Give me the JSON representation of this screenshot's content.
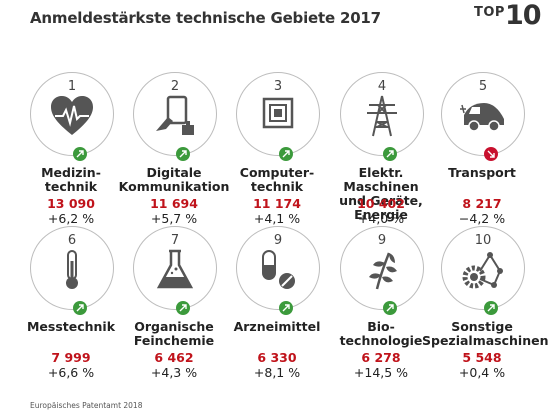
{
  "title": "Anmeldestärkste technische Gebiete 2017",
  "badge": {
    "top": "TOP",
    "num": "10"
  },
  "colors": {
    "up": "#3c9a3c",
    "down": "#c8102e",
    "value": "#c0131b"
  },
  "items": [
    {
      "rank": "1",
      "label_line1": "Medizin-",
      "label_line2": "technik",
      "value": "13 090",
      "change": "+6,2 %",
      "trend": "up",
      "icon": "heart-pulse-icon"
    },
    {
      "rank": "2",
      "label_line1": "Digitale",
      "label_line2": "Kommunikation",
      "value": "11 694",
      "change": "+5,7 %",
      "trend": "up",
      "icon": "hand-tablet-icon"
    },
    {
      "rank": "3",
      "label_line1": "Computer-",
      "label_line2": "technik",
      "value": "11 174",
      "change": "+4,1 %",
      "trend": "up",
      "icon": "chip-icon"
    },
    {
      "rank": "4",
      "label_line1": "Elektr. Maschinen",
      "label_line2": "und Geräte, Energie",
      "value": "10 402",
      "change": "+4,0 %",
      "trend": "up",
      "icon": "power-pylon-icon"
    },
    {
      "rank": "5",
      "label_line1": "Transport",
      "label_line2": "",
      "value": "8 217",
      "change": "−4,2 %",
      "trend": "down",
      "icon": "electric-car-icon"
    },
    {
      "rank": "6",
      "label_line1": "Messtechnik",
      "label_line2": "",
      "value": "7 999",
      "change": "+6,6 %",
      "trend": "up",
      "icon": "thermometer-icon"
    },
    {
      "rank": "7",
      "label_line1": "Organische",
      "label_line2": "Feinchemie",
      "value": "6 462",
      "change": "+4,3 %",
      "trend": "up",
      "icon": "flask-icon"
    },
    {
      "rank": "9",
      "label_line1": "Arzneimittel",
      "label_line2": "",
      "value": "6 330",
      "change": "+8,1 %",
      "trend": "up",
      "icon": "pills-icon"
    },
    {
      "rank": "9",
      "label_line1": "Bio-",
      "label_line2": "technologie",
      "value": "6 278",
      "change": "+14,5 %",
      "trend": "up",
      "icon": "plant-icon"
    },
    {
      "rank": "10",
      "label_line1": "Sonstige",
      "label_line2": "Spezialmaschinen",
      "value": "5 548",
      "change": "+0,4 %",
      "trend": "up",
      "icon": "gear-network-icon"
    }
  ],
  "footer": "Europäisches Patentamt 2018"
}
